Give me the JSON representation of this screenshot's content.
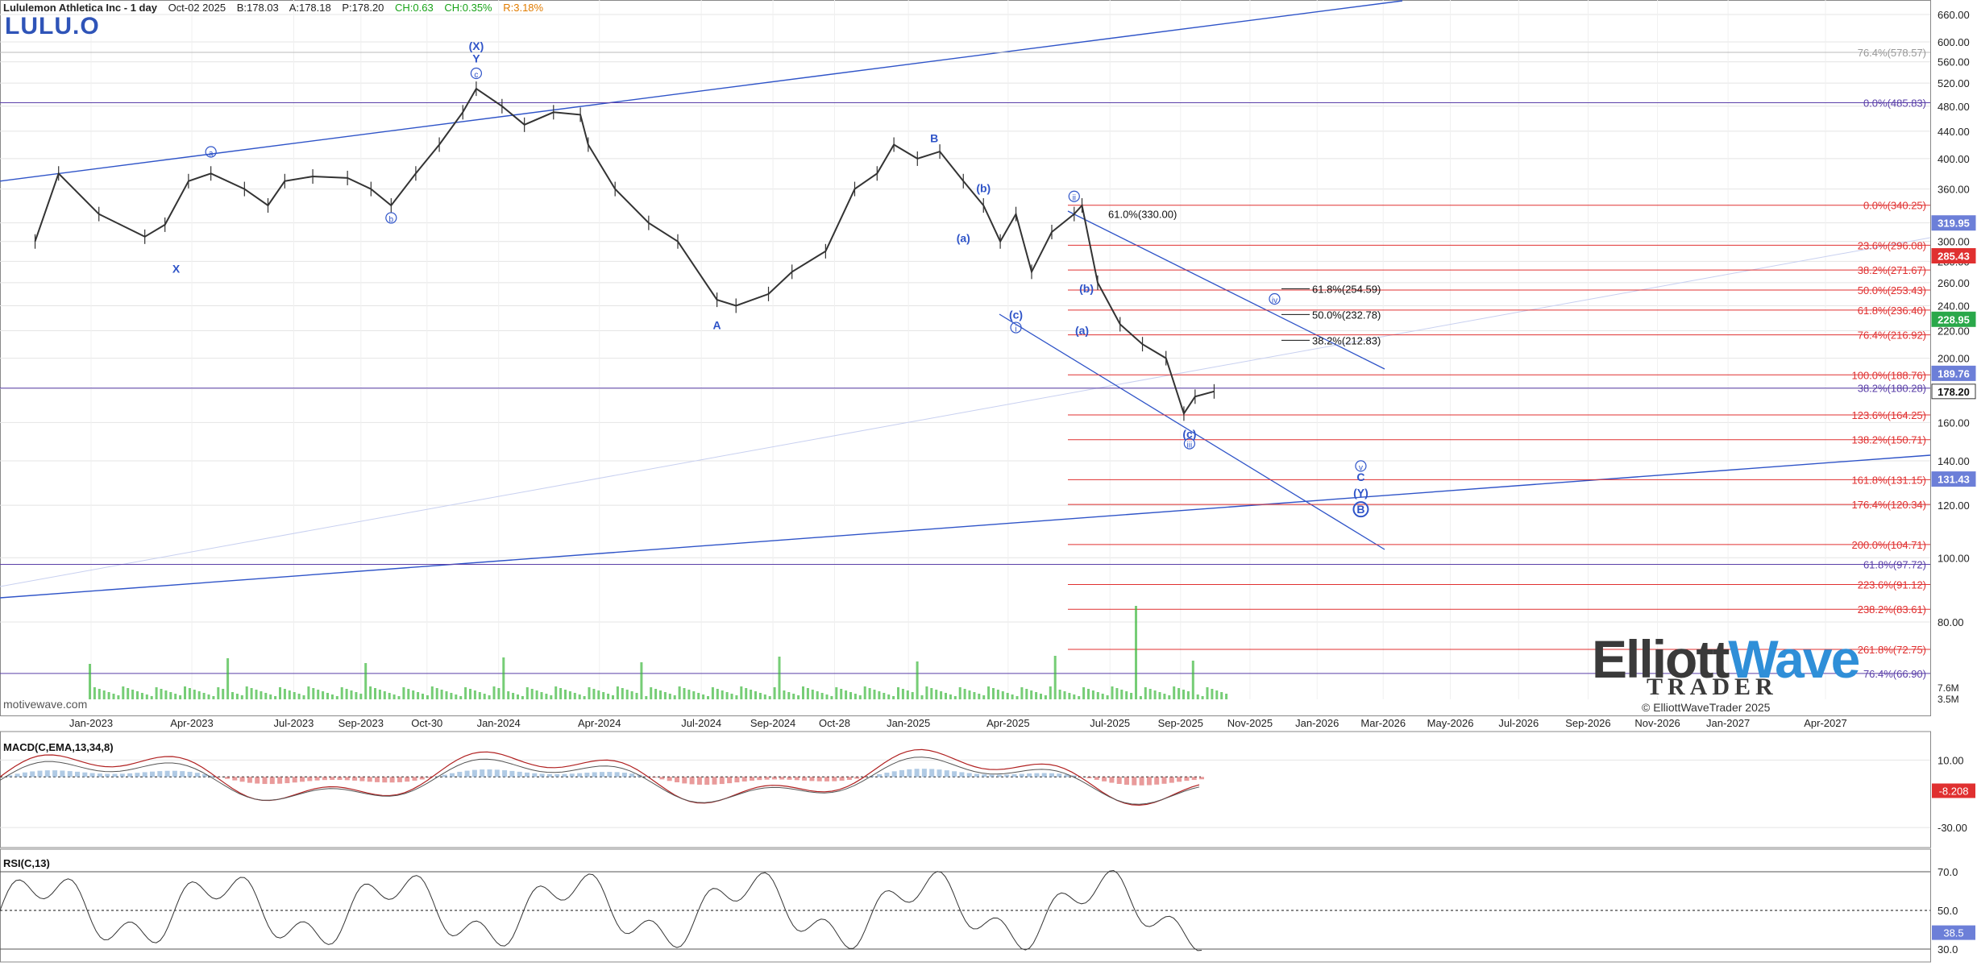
{
  "header": {
    "title": "Lululemon Athletica Inc - 1 day",
    "date": "Oct-02 2025",
    "bid": "B:178.03",
    "ask": "A:178.18",
    "price": "P:178.20",
    "change": "CH:0.63",
    "change_pct": "CH:0.35%",
    "range": "R:3.18%"
  },
  "ticker": "LULU.O",
  "watermark": "motivewave.com",
  "logo": {
    "part1": "Elliott",
    "part2": "Wave",
    "sub": "TRADER",
    "copyright": "© ElliottWaveTrader 2025"
  },
  "colors": {
    "grid": "#e4e4e4",
    "fib_red": "#e03030",
    "purple": "#5a3fa8",
    "blue": "#2f54c8",
    "volume": "#3cb83c",
    "price_bar": "#333333"
  },
  "chart_data": [
    {
      "type": "ohlc",
      "panel": "price",
      "scale": "log",
      "ylim": [
        60,
        670
      ],
      "y_ticks": [
        "660.00",
        "600.00",
        "560.00",
        "520.00",
        "480.00",
        "440.00",
        "400.00",
        "360.00",
        "320.00",
        "300.00",
        "280.00",
        "260.00",
        "240.00",
        "220.00",
        "200.00",
        "180.00",
        "160.00",
        "140.00",
        "120.00",
        "100.00",
        "80.00"
      ],
      "x_ticks": [
        "Jan-2023",
        "Apr-2023",
        "Jul-2023",
        "Sep-2023",
        "Oct-30",
        "Jan-2024",
        "Apr-2024",
        "Jul-2024",
        "Sep-2024",
        "Oct-28",
        "Jan-2025",
        "Apr-2025",
        "Jul-2025",
        "Sep-2025",
        "Nov-2025",
        "Jan-2026",
        "Mar-2026",
        "May-2026",
        "Jul-2026",
        "Sep-2026",
        "Nov-2026",
        "Jan-2027",
        "Apr-2027"
      ],
      "x_tick_dates": [
        "2023-01-03",
        "2023-04-03",
        "2023-07-03",
        "2023-09-01",
        "2023-10-30",
        "2024-01-02",
        "2024-04-01",
        "2024-07-01",
        "2024-09-03",
        "2024-10-28",
        "2025-01-02",
        "2025-04-01",
        "2025-07-01",
        "2025-09-02",
        "2025-11-03",
        "2026-01-02",
        "2026-03-02",
        "2026-05-01",
        "2026-07-01",
        "2026-09-01",
        "2026-11-02",
        "2027-01-04",
        "2027-04-01"
      ],
      "series": [
        {
          "values_key": "close_path",
          "dates": [
            "2022-11-14",
            "2022-12-05",
            "2023-01-10",
            "2023-02-20",
            "2023-03-10",
            "2023-03-31",
            "2023-04-20",
            "2023-05-20",
            "2023-06-10",
            "2023-06-25",
            "2023-07-20",
            "2023-08-20",
            "2023-09-10",
            "2023-09-28",
            "2023-10-20",
            "2023-11-10",
            "2023-12-01",
            "2023-12-13",
            "2024-01-05",
            "2024-01-25",
            "2024-02-20",
            "2024-03-15",
            "2024-03-22",
            "2024-04-15",
            "2024-05-15",
            "2024-06-10",
            "2024-07-15",
            "2024-08-01",
            "2024-08-30",
            "2024-09-20",
            "2024-10-20",
            "2024-11-15",
            "2024-12-05",
            "2024-12-20",
            "2025-01-10",
            "2025-01-30",
            "2025-02-20",
            "2025-03-10",
            "2025-03-25",
            "2025-04-08",
            "2025-04-22",
            "2025-05-10",
            "2025-05-30",
            "2025-06-06",
            "2025-06-20",
            "2025-07-10",
            "2025-07-30",
            "2025-08-20",
            "2025-09-05",
            "2025-09-15",
            "2025-10-02"
          ],
          "close": [
            300,
            380,
            330,
            305,
            318,
            370,
            380,
            360,
            340,
            370,
            376,
            374,
            360,
            340,
            380,
            420,
            470,
            510,
            480,
            450,
            470,
            466,
            420,
            360,
            320,
            300,
            245,
            240,
            250,
            270,
            290,
            360,
            380,
            420,
            400,
            410,
            370,
            340,
            300,
            330,
            270,
            310,
            330,
            340,
            260,
            225,
            210,
            200,
            165,
            175,
            178.2
          ]
        }
      ],
      "fib_lines_red": [
        {
          "label": "0.0%(340.25)",
          "value": 340.25
        },
        {
          "label": "23.6%(296.08)",
          "value": 296.08
        },
        {
          "label": "38.2%(271.67)",
          "value": 271.67
        },
        {
          "label": "50.0%(253.43)",
          "value": 253.43
        },
        {
          "label": "61.8%(236.40)",
          "value": 236.4
        },
        {
          "label": "76.4%(216.92)",
          "value": 216.92
        },
        {
          "label": "100.0%(188.76)",
          "value": 188.76
        },
        {
          "label": "123.6%(164.25)",
          "value": 164.25
        },
        {
          "label": "138.2%(150.71)",
          "value": 150.71
        },
        {
          "label": "161.8%(131.15)",
          "value": 131.15
        },
        {
          "label": "176.4%(120.34)",
          "value": 120.34
        },
        {
          "label": "200.0%(104.71)",
          "value": 104.71
        },
        {
          "label": "223.6%(91.12)",
          "value": 91.12
        },
        {
          "label": "238.2%(83.61)",
          "value": 83.61
        },
        {
          "label": "261.8%(72.75)",
          "value": 72.75
        }
      ],
      "fib_lines_purple": [
        {
          "label": "0.0%(485.83)",
          "value": 485.83
        },
        {
          "label": "38.2%(180.28)",
          "value": 180.28
        },
        {
          "label": "61.8%(97.72)",
          "value": 97.72
        },
        {
          "label": "76.4%(66.90)",
          "value": 66.9
        }
      ],
      "fib_lines_gray": [
        {
          "label": "76.4%(578.57)",
          "value": 578.57
        }
      ],
      "fib_lines_black": [
        {
          "label": "61.0%(330.00)",
          "value": 330.0
        },
        {
          "label": "61.8%(254.59)",
          "value": 254.59
        },
        {
          "label": "50.0%(232.78)",
          "value": 232.78
        },
        {
          "label": "38.2%(212.83)",
          "value": 212.83
        }
      ],
      "price_boxes": [
        {
          "value": "319.95",
          "color": "#6c7fd8"
        },
        {
          "value": "285.43",
          "color": "#e03030"
        },
        {
          "value": "228.95",
          "color": "#2aa84a"
        },
        {
          "value": "189.76",
          "color": "#6c7fd8"
        },
        {
          "value": "178.20",
          "color": "#ffffff"
        },
        {
          "value": "131.43",
          "color": "#6c7fd8"
        }
      ],
      "wave_labels": [
        {
          "text": "(X)",
          "date": "2023-12-13",
          "price": 585
        },
        {
          "text": "Y",
          "date": "2023-12-13",
          "price": 560
        },
        {
          "text": "c",
          "date": "2023-12-13",
          "price": 532,
          "circled": true
        },
        {
          "text": "a",
          "date": "2023-04-20",
          "price": 405,
          "circled": true
        },
        {
          "text": "b",
          "date": "2023-09-28",
          "price": 322,
          "circled": true
        },
        {
          "text": "X",
          "date": "2023-03-20",
          "price": 270
        },
        {
          "text": "A",
          "date": "2024-07-15",
          "price": 222
        },
        {
          "text": "B",
          "date": "2025-01-25",
          "price": 425
        },
        {
          "text": "(b)",
          "date": "2025-03-10",
          "price": 357
        },
        {
          "text": "(a)",
          "date": "2025-02-20",
          "price": 300
        },
        {
          "text": "(c)",
          "date": "2025-04-08",
          "price": 230
        },
        {
          "text": "i",
          "date": "2025-04-08",
          "price": 220,
          "circled": true
        },
        {
          "text": "ii",
          "date": "2025-05-30",
          "price": 347,
          "circled": true
        },
        {
          "text": "(b)",
          "date": "2025-06-10",
          "price": 252
        },
        {
          "text": "(a)",
          "date": "2025-06-06",
          "price": 218
        },
        {
          "text": "iv",
          "date": "2025-11-25",
          "price": 243,
          "circled": true
        },
        {
          "text": "(c)",
          "date": "2025-09-10",
          "price": 152
        },
        {
          "text": "iii",
          "date": "2025-09-10",
          "price": 147,
          "circled": true
        },
        {
          "text": "v",
          "date": "2026-02-10",
          "price": 136,
          "circled": true
        },
        {
          "text": "C",
          "date": "2026-02-10",
          "price": 131
        },
        {
          "text": "(Y)",
          "date": "2026-02-10",
          "price": 124
        },
        {
          "text": "B",
          "date": "2026-02-10",
          "price": 117,
          "circled": true,
          "bold": true
        }
      ]
    },
    {
      "type": "line",
      "panel": "macd",
      "title": "MACD(C,EMA,13,34,8)",
      "ylim": [
        -40,
        25
      ],
      "y_ticks": [
        "10.00",
        "-30.00"
      ],
      "last_value": "-8.208"
    },
    {
      "type": "line",
      "panel": "rsi",
      "title": "RSI(C,13)",
      "ylim": [
        25,
        80
      ],
      "y_ticks": [
        "70.0",
        "50.0",
        "30.0"
      ],
      "last_value": "38.5"
    }
  ],
  "volume_ticks": [
    "7.6M",
    "3.5M"
  ]
}
